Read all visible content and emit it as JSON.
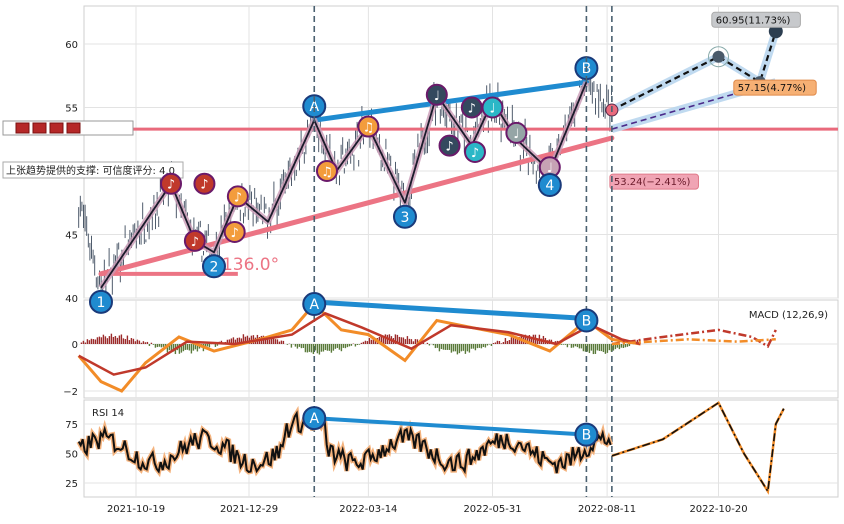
{
  "chart_data": {
    "type": "stock_technical_analysis",
    "x_tick_labels": [
      "2021-10-19",
      "2021-12-29",
      "2022-03-14",
      "2022-05-31",
      "2022-08-11",
      "2022-10-20"
    ],
    "price_panel": {
      "y_ticks": [
        40,
        45,
        55,
        60
      ],
      "ylim": [
        40,
        62.5
      ],
      "candles_range": {
        "start": "2021-09-13",
        "end": "2022-08-14",
        "low": 41.5,
        "high": 57.0
      },
      "trend_support_angle": "136.0°",
      "support_text": "上张趋势提供的支撑: 可信度评分: 4.0",
      "horizontal_level": 53.3,
      "pattern_points": [
        {
          "label": "1",
          "date": "2021-09-27",
          "value": 40.8
        },
        {
          "label": "2",
          "date": "2021-12-07",
          "value": 43.6
        },
        {
          "label": "A",
          "date": "2022-02-08",
          "value": 54.0
        },
        {
          "label": "3",
          "date": "2022-04-06",
          "value": 47.5
        },
        {
          "label": "4",
          "date": "2022-07-06",
          "value": 50.0
        },
        {
          "label": "B",
          "date": "2022-07-29",
          "value": 57.0
        }
      ],
      "wave_path": [
        {
          "date": "2021-09-27",
          "value": 40.8
        },
        {
          "date": "2021-11-10",
          "value": 49.0
        },
        {
          "date": "2021-11-25",
          "value": 44.5
        },
        {
          "date": "2021-12-07",
          "value": 43.6
        },
        {
          "date": "2021-12-22",
          "value": 48.0
        },
        {
          "date": "2022-01-10",
          "value": 46.0
        },
        {
          "date": "2022-02-08",
          "value": 54.0
        },
        {
          "date": "2022-02-22",
          "value": 50.0
        },
        {
          "date": "2022-03-14",
          "value": 53.5
        },
        {
          "date": "2022-04-06",
          "value": 47.5
        },
        {
          "date": "2022-04-26",
          "value": 56.0
        },
        {
          "date": "2022-05-18",
          "value": 52.0
        },
        {
          "date": "2022-05-31",
          "value": 55.5
        },
        {
          "date": "2022-06-15",
          "value": 52.5
        },
        {
          "date": "2022-07-06",
          "value": 50.0
        },
        {
          "date": "2022-07-29",
          "value": 57.0
        }
      ],
      "music_markers": [
        {
          "date": "2021-11-10",
          "value": 49.0,
          "color": "#c0392b",
          "note": "♪"
        },
        {
          "date": "2021-11-25",
          "value": 44.5,
          "color": "#c0392b",
          "note": "♪"
        },
        {
          "date": "2021-12-01",
          "value": 49.0,
          "color": "#c0392b",
          "note": "♪"
        },
        {
          "date": "2021-12-22",
          "value": 48.0,
          "color": "#f39c3c",
          "note": "♪"
        },
        {
          "date": "2021-12-20",
          "value": 45.2,
          "color": "#f39c3c",
          "note": "♪"
        },
        {
          "date": "2022-02-16",
          "value": 50.0,
          "color": "#f39c3c",
          "note": "♫"
        },
        {
          "date": "2022-03-14",
          "value": 53.5,
          "color": "#f39c3c",
          "note": "♫"
        },
        {
          "date": "2022-04-26",
          "value": 56.0,
          "color": "#34495e",
          "note": "♩"
        },
        {
          "date": "2022-05-04",
          "value": 52.0,
          "color": "#34495e",
          "note": "♪"
        },
        {
          "date": "2022-05-18",
          "value": 55.0,
          "color": "#34495e",
          "note": "♪"
        },
        {
          "date": "2022-05-20",
          "value": 51.5,
          "color": "#2bb7c7",
          "note": "♪"
        },
        {
          "date": "2022-05-31",
          "value": 55.0,
          "color": "#2bb7c7",
          "note": "♩"
        },
        {
          "date": "2022-06-15",
          "value": 53.0,
          "color": "#95a5a6",
          "note": "♩"
        },
        {
          "date": "2022-07-06",
          "value": 50.3,
          "color": "#c7a2b4",
          "note": "♩"
        }
      ],
      "forecast_main": [
        {
          "date": "2022-08-14",
          "value": 54.8
        },
        {
          "date": "2022-10-20",
          "value": 59.0
        },
        {
          "date": "2022-11-15",
          "value": 57.0
        },
        {
          "date": "2022-11-25",
          "value": 61.0
        }
      ],
      "forecast_low": [
        {
          "date": "2022-08-14",
          "value": 53.3
        },
        {
          "date": "2022-11-25",
          "value": 57.0
        }
      ],
      "annotations": [
        {
          "text": "60.95(11.73%)",
          "style": "gray"
        },
        {
          "text": "57.15(4.77%)",
          "style": "orange"
        },
        {
          "text": "53.24(−2.41%)",
          "style": "pink"
        }
      ]
    },
    "macd_panel": {
      "label": "MACD (12,26,9)",
      "y_ticks": [
        -2,
        0
      ],
      "ylim": [
        -2.3,
        1.8
      ],
      "divergence": {
        "A": {
          "date": "2022-02-08",
          "value": 1.7
        },
        "B": {
          "date": "2022-07-29",
          "value": 1.0
        }
      },
      "dif": [
        {
          "date": "2021-09-13",
          "value": -0.5
        },
        {
          "date": "2021-09-27",
          "value": -1.6
        },
        {
          "date": "2021-10-10",
          "value": -2.0
        },
        {
          "date": "2021-10-25",
          "value": -0.8
        },
        {
          "date": "2021-11-15",
          "value": 0.3
        },
        {
          "date": "2021-12-07",
          "value": -0.3
        },
        {
          "date": "2022-01-05",
          "value": 0.2
        },
        {
          "date": "2022-01-25",
          "value": 0.6
        },
        {
          "date": "2022-02-08",
          "value": 1.7
        },
        {
          "date": "2022-02-25",
          "value": 0.6
        },
        {
          "date": "2022-03-14",
          "value": 0.4
        },
        {
          "date": "2022-04-06",
          "value": -0.7
        },
        {
          "date": "2022-04-26",
          "value": 1.0
        },
        {
          "date": "2022-05-18",
          "value": 0.7
        },
        {
          "date": "2022-06-10",
          "value": 0.4
        },
        {
          "date": "2022-07-06",
          "value": -0.3
        },
        {
          "date": "2022-07-29",
          "value": 1.0
        },
        {
          "date": "2022-08-14",
          "value": 0.2
        },
        {
          "date": "2022-09-01",
          "value": 0.0
        }
      ],
      "dea": [
        {
          "date": "2021-09-13",
          "value": -0.5
        },
        {
          "date": "2021-10-05",
          "value": -1.3
        },
        {
          "date": "2021-10-25",
          "value": -1.0
        },
        {
          "date": "2021-11-20",
          "value": 0.1
        },
        {
          "date": "2021-12-20",
          "value": 0.0
        },
        {
          "date": "2022-01-25",
          "value": 0.4
        },
        {
          "date": "2022-02-15",
          "value": 1.3
        },
        {
          "date": "2022-03-10",
          "value": 0.7
        },
        {
          "date": "2022-04-10",
          "value": -0.2
        },
        {
          "date": "2022-05-05",
          "value": 0.8
        },
        {
          "date": "2022-06-10",
          "value": 0.5
        },
        {
          "date": "2022-07-10",
          "value": 0.0
        },
        {
          "date": "2022-08-01",
          "value": 0.8
        },
        {
          "date": "2022-08-20",
          "value": 0.2
        },
        {
          "date": "2022-09-01",
          "value": 0.0
        }
      ],
      "forecast_dif": [
        {
          "date": "2022-08-14",
          "value": 0.0
        },
        {
          "date": "2022-09-15",
          "value": 0.3
        },
        {
          "date": "2022-10-20",
          "value": 0.6
        },
        {
          "date": "2022-11-10",
          "value": 0.3
        },
        {
          "date": "2022-11-20",
          "value": -0.1
        },
        {
          "date": "2022-11-25",
          "value": 0.6
        }
      ],
      "forecast_dea": [
        {
          "date": "2022-08-14",
          "value": 0.0
        },
        {
          "date": "2022-10-01",
          "value": 0.2
        },
        {
          "date": "2022-11-01",
          "value": 0.1
        },
        {
          "date": "2022-11-25",
          "value": 0.2
        }
      ]
    },
    "rsi_panel": {
      "label": "RSI 14",
      "y_ticks": [
        25,
        50,
        75
      ],
      "ylim": [
        10,
        95
      ],
      "divergence": {
        "A": {
          "date": "2022-02-08",
          "value": 80
        },
        "B": {
          "date": "2022-07-29",
          "value": 66
        }
      },
      "rsi_range": {
        "start": "2021-09-13",
        "end": "2022-08-14"
      },
      "forecast_rsi": [
        {
          "date": "2022-08-14",
          "value": 48
        },
        {
          "date": "2022-09-15",
          "value": 62
        },
        {
          "date": "2022-10-20",
          "value": 93
        },
        {
          "date": "2022-11-05",
          "value": 50
        },
        {
          "date": "2022-11-20",
          "value": 18
        },
        {
          "date": "2022-11-25",
          "value": 75
        },
        {
          "date": "2022-11-30",
          "value": 88
        }
      ]
    },
    "vertical_markers": [
      "2022-02-08",
      "2022-07-29",
      "2022-08-14"
    ]
  }
}
